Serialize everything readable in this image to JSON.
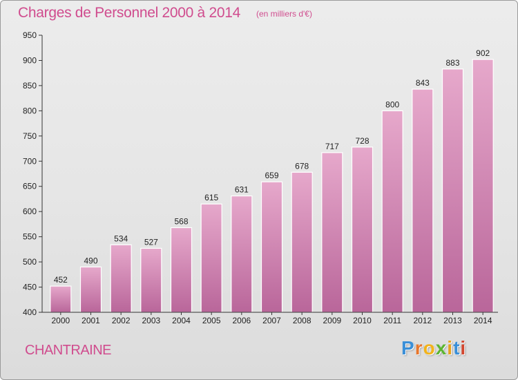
{
  "title": "Charges de Personnel 2000 à 2014",
  "subtitle": "(en milliers d'€)",
  "place": "CHANTRAINE",
  "logo": {
    "letters": [
      "P",
      "r",
      "o",
      "x",
      "i",
      "t",
      "i"
    ],
    "colors": [
      "#3a8fd8",
      "#e8762b",
      "#f2b31b",
      "#5cb531",
      "#e8a21b",
      "#3a8fd8",
      "#d2462f"
    ]
  },
  "colors": {
    "bar_top": "#e6a8cb",
    "bar_bottom": "#b9669a",
    "text": "#d04c8e",
    "axis": "#333333"
  },
  "chart_data": {
    "type": "bar",
    "categories": [
      "2000",
      "2001",
      "2002",
      "2003",
      "2004",
      "2005",
      "2006",
      "2007",
      "2008",
      "2009",
      "2010",
      "2011",
      "2012",
      "2013",
      "2014"
    ],
    "values": [
      452,
      490,
      534,
      527,
      568,
      615,
      631,
      659,
      678,
      717,
      728,
      800,
      843,
      883,
      902
    ],
    "ylim": [
      400,
      950
    ],
    "yticks": [
      400,
      450,
      500,
      550,
      600,
      650,
      700,
      750,
      800,
      850,
      900,
      950
    ],
    "grid": false,
    "data_labels": true
  }
}
